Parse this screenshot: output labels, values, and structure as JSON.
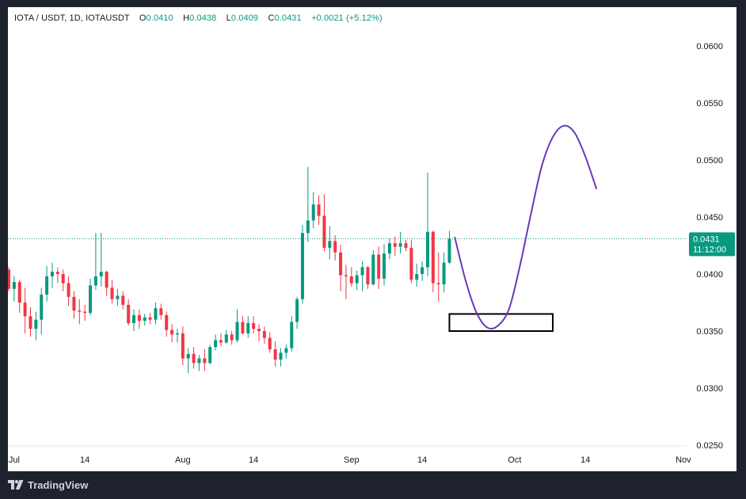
{
  "header": {
    "symbol": "IOTA / USDT, 1D, IOTAUSDT",
    "ohlc": [
      {
        "label": "O",
        "value": "0.0410"
      },
      {
        "label": "H",
        "value": "0.0438"
      },
      {
        "label": "L",
        "value": "0.0409"
      },
      {
        "label": "C",
        "value": "0.0431"
      }
    ],
    "change": "+0.0021 (+5.12%)"
  },
  "last_price": {
    "price": "0.0431",
    "countdown": "11:12:00",
    "color": "#089981"
  },
  "footer": {
    "brand": "TradingView"
  },
  "colors": {
    "up": "#089981",
    "down": "#f23645",
    "projection": "#673ab7",
    "box": "#000000"
  },
  "chart_data": {
    "type": "candlestick",
    "y_axis": {
      "position": "right",
      "range": [
        0.025,
        0.062
      ],
      "ticks": [
        "0.0600",
        "0.0550",
        "0.0500",
        "0.0450",
        "0.0400",
        "0.0350",
        "0.0300",
        "0.0250"
      ]
    },
    "x_axis": {
      "range_days": [
        0,
        94
      ],
      "ticks": [
        {
          "label": "Jul",
          "day": 1
        },
        {
          "label": "14",
          "day": 14
        },
        {
          "label": "Aug",
          "day": 32
        },
        {
          "label": "14",
          "day": 45
        },
        {
          "label": "Sep",
          "day": 63
        },
        {
          "label": "14",
          "day": 76
        },
        {
          "label": "Oct",
          "day": 93
        },
        {
          "label": "14",
          "day": 106
        },
        {
          "label": "Nov",
          "day": 124
        }
      ]
    },
    "candles_ohlc": [
      [
        0.0404,
        0.0406,
        0.0385,
        0.0387
      ],
      [
        0.0387,
        0.0398,
        0.0376,
        0.0393
      ],
      [
        0.0393,
        0.0395,
        0.0366,
        0.0375
      ],
      [
        0.0375,
        0.0388,
        0.0348,
        0.0363
      ],
      [
        0.0363,
        0.0371,
        0.0345,
        0.0352
      ],
      [
        0.0352,
        0.0367,
        0.0342,
        0.036
      ],
      [
        0.036,
        0.0388,
        0.0347,
        0.0382
      ],
      [
        0.0382,
        0.0407,
        0.0376,
        0.0398
      ],
      [
        0.0398,
        0.041,
        0.0388,
        0.0402
      ],
      [
        0.0402,
        0.0406,
        0.0392,
        0.04
      ],
      [
        0.04,
        0.0404,
        0.0385,
        0.0392
      ],
      [
        0.0392,
        0.0398,
        0.0372,
        0.038
      ],
      [
        0.038,
        0.0385,
        0.0361,
        0.0368
      ],
      [
        0.0368,
        0.0378,
        0.0356,
        0.0367
      ],
      [
        0.0367,
        0.0373,
        0.0359,
        0.0366
      ],
      [
        0.0366,
        0.0396,
        0.0364,
        0.039
      ],
      [
        0.039,
        0.0436,
        0.0386,
        0.0398
      ],
      [
        0.0398,
        0.0436,
        0.0389,
        0.0402
      ],
      [
        0.0402,
        0.0403,
        0.0381,
        0.0388
      ],
      [
        0.0388,
        0.0395,
        0.0374,
        0.0378
      ],
      [
        0.0378,
        0.0387,
        0.0372,
        0.0381
      ],
      [
        0.0381,
        0.0385,
        0.0369,
        0.0373
      ],
      [
        0.0373,
        0.0378,
        0.0355,
        0.0357
      ],
      [
        0.0357,
        0.0369,
        0.035,
        0.0364
      ],
      [
        0.0364,
        0.0369,
        0.0352,
        0.0359
      ],
      [
        0.0359,
        0.0365,
        0.0355,
        0.0362
      ],
      [
        0.0362,
        0.0366,
        0.0356,
        0.036
      ],
      [
        0.036,
        0.0375,
        0.0356,
        0.037
      ],
      [
        0.037,
        0.0374,
        0.036,
        0.0364
      ],
      [
        0.0364,
        0.0367,
        0.0345,
        0.0351
      ],
      [
        0.0351,
        0.0356,
        0.034,
        0.0347
      ],
      [
        0.0347,
        0.0352,
        0.034,
        0.0348
      ],
      [
        0.0348,
        0.0354,
        0.032,
        0.0326
      ],
      [
        0.0326,
        0.0335,
        0.0313,
        0.033
      ],
      [
        0.033,
        0.0336,
        0.0317,
        0.0322
      ],
      [
        0.0322,
        0.0329,
        0.0315,
        0.0326
      ],
      [
        0.0326,
        0.0334,
        0.0315,
        0.0322
      ],
      [
        0.0322,
        0.0338,
        0.0321,
        0.0336
      ],
      [
        0.0336,
        0.0347,
        0.0333,
        0.0342
      ],
      [
        0.0342,
        0.0348,
        0.0337,
        0.034
      ],
      [
        0.034,
        0.0351,
        0.0339,
        0.0347
      ],
      [
        0.0347,
        0.035,
        0.0338,
        0.0342
      ],
      [
        0.0342,
        0.0369,
        0.034,
        0.0358
      ],
      [
        0.0358,
        0.0363,
        0.0347,
        0.0348
      ],
      [
        0.0348,
        0.0363,
        0.0344,
        0.0357
      ],
      [
        0.0357,
        0.0363,
        0.0348,
        0.0352
      ],
      [
        0.0352,
        0.0356,
        0.0341,
        0.035
      ],
      [
        0.035,
        0.0354,
        0.0339,
        0.0344
      ],
      [
        0.0344,
        0.0349,
        0.0331,
        0.0334
      ],
      [
        0.0334,
        0.0341,
        0.0319,
        0.0325
      ],
      [
        0.0325,
        0.0335,
        0.0319,
        0.0331
      ],
      [
        0.0331,
        0.0338,
        0.0326,
        0.0335
      ],
      [
        0.0335,
        0.0363,
        0.0332,
        0.0358
      ],
      [
        0.0358,
        0.038,
        0.0352,
        0.0378
      ],
      [
        0.0378,
        0.0443,
        0.0374,
        0.0436
      ],
      [
        0.0436,
        0.0494,
        0.0428,
        0.0447
      ],
      [
        0.0447,
        0.0472,
        0.044,
        0.0461
      ],
      [
        0.0461,
        0.0469,
        0.0443,
        0.0451
      ],
      [
        0.0451,
        0.047,
        0.042,
        0.0423
      ],
      [
        0.0423,
        0.0442,
        0.0413,
        0.0429
      ],
      [
        0.0429,
        0.0434,
        0.0412,
        0.0419
      ],
      [
        0.0419,
        0.0426,
        0.0385,
        0.0399
      ],
      [
        0.0399,
        0.0408,
        0.0378,
        0.0398
      ],
      [
        0.0398,
        0.0406,
        0.0389,
        0.0392
      ],
      [
        0.0392,
        0.0403,
        0.0386,
        0.0399
      ],
      [
        0.0399,
        0.0411,
        0.0385,
        0.0406
      ],
      [
        0.0406,
        0.0407,
        0.0387,
        0.0391
      ],
      [
        0.0391,
        0.0421,
        0.039,
        0.0417
      ],
      [
        0.0417,
        0.0424,
        0.0387,
        0.0396
      ],
      [
        0.0396,
        0.0426,
        0.039,
        0.0418
      ],
      [
        0.0418,
        0.0431,
        0.0413,
        0.0427
      ],
      [
        0.0427,
        0.0433,
        0.0416,
        0.0424
      ],
      [
        0.0424,
        0.0437,
        0.0418,
        0.0427
      ],
      [
        0.0427,
        0.043,
        0.042,
        0.0423
      ],
      [
        0.0423,
        0.043,
        0.0392,
        0.0395
      ],
      [
        0.0395,
        0.0409,
        0.0389,
        0.04
      ],
      [
        0.04,
        0.0411,
        0.0394,
        0.0406
      ],
      [
        0.0406,
        0.0489,
        0.0398,
        0.0437
      ],
      [
        0.0437,
        0.0438,
        0.0384,
        0.0392
      ],
      [
        0.0392,
        0.0419,
        0.0376,
        0.0391
      ],
      [
        0.0391,
        0.0419,
        0.0384,
        0.041
      ],
      [
        0.041,
        0.0438,
        0.0409,
        0.0431
      ]
    ],
    "projection_curve": [
      [
        82,
        0.0432
      ],
      [
        84,
        0.0394
      ],
      [
        86,
        0.0366
      ],
      [
        88,
        0.0353
      ],
      [
        90,
        0.0355
      ],
      [
        92,
        0.037
      ],
      [
        94,
        0.0408
      ],
      [
        96,
        0.0453
      ],
      [
        98,
        0.0495
      ],
      [
        100,
        0.052
      ],
      [
        102,
        0.053
      ],
      [
        104,
        0.0524
      ],
      [
        106,
        0.0503
      ],
      [
        108,
        0.0475
      ]
    ],
    "box_zone": {
      "day_start": 81,
      "day_end": 100,
      "price_top": 0.0365,
      "price_bottom": 0.035
    },
    "last_price_value": 0.0431
  }
}
